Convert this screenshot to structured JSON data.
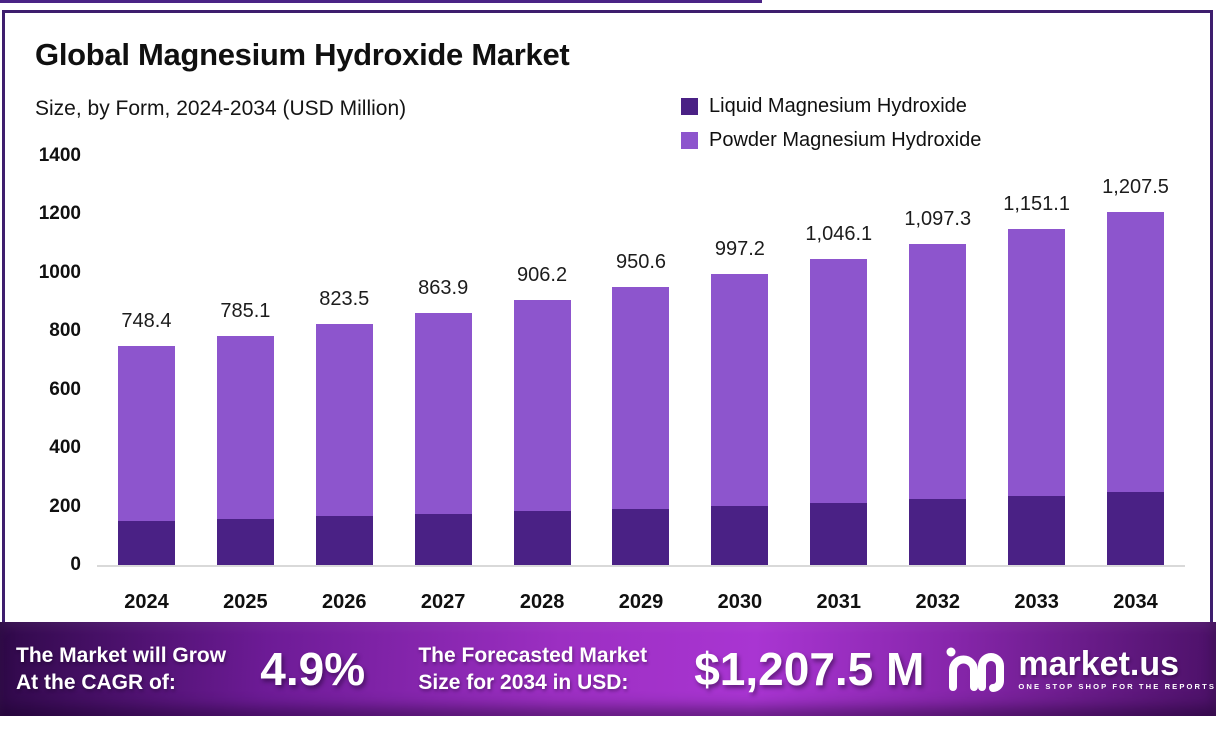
{
  "header": {
    "title": "Global Magnesium Hydroxide Market",
    "subtitle": "Size, by Form, 2024-2034 (USD Million)"
  },
  "legend": [
    {
      "label": "Liquid Magnesium Hydroxide",
      "color": "#4a2185"
    },
    {
      "label": "Powder Magnesium Hydroxide",
      "color": "#8d55cd"
    }
  ],
  "chart_data": {
    "type": "bar",
    "stacked": true,
    "title": "Global Magnesium Hydroxide Market",
    "subtitle": "Size, by Form, 2024-2034 (USD Million)",
    "categories": [
      "2024",
      "2025",
      "2026",
      "2027",
      "2028",
      "2029",
      "2030",
      "2031",
      "2032",
      "2033",
      "2034"
    ],
    "series": [
      {
        "name": "Liquid Magnesium Hydroxide",
        "color": "#4a2185",
        "estimated": true,
        "values": [
          150.0,
          157.9,
          166.1,
          174.7,
          183.8,
          193.3,
          203.4,
          213.9,
          225.0,
          236.7,
          249.0
        ]
      },
      {
        "name": "Powder Magnesium Hydroxide",
        "color": "#8d55cd",
        "estimated": true,
        "values": [
          598.4,
          627.2,
          657.4,
          689.2,
          722.4,
          757.3,
          793.8,
          832.2,
          872.3,
          914.4,
          958.5
        ]
      }
    ],
    "totals": [
      748.4,
      785.1,
      823.5,
      863.9,
      906.2,
      950.6,
      997.2,
      1046.1,
      1097.3,
      1151.1,
      1207.5
    ],
    "total_labels": [
      "748.4",
      "785.1",
      "823.5",
      "863.9",
      "906.2",
      "950.6",
      "997.2",
      "1,046.1",
      "1,097.3",
      "1,151.1",
      "1,207.5"
    ],
    "ylim": [
      0,
      1400
    ],
    "yticks": [
      0,
      200,
      400,
      600,
      800,
      1000,
      1200,
      1400
    ],
    "grid": false,
    "legend_position": "top-right"
  },
  "banner": {
    "cagr_label_line1": "The Market will Grow",
    "cagr_label_line2": "At the CAGR of:",
    "cagr_value": "4.9%",
    "forecast_label_line1": "The Forecasted Market",
    "forecast_label_line2": "Size for 2034 in USD:",
    "forecast_value": "$1,207.5 M",
    "brand": {
      "name": "market.us",
      "tagline": "ONE STOP SHOP FOR THE REPORTS"
    }
  },
  "colors": {
    "liquid": "#4a2185",
    "powder": "#8d55cd",
    "border": "#3e1e6e",
    "axis_line": "#d9d9d9",
    "banner_gradient": [
      "#30094a",
      "#9c2fc2",
      "#a935d2",
      "#4c1168"
    ],
    "text": "#101010"
  }
}
